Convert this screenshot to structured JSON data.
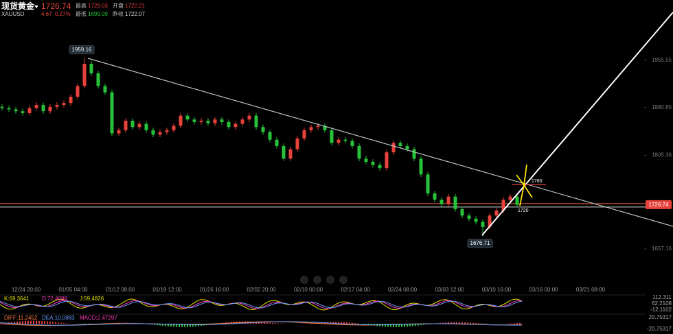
{
  "header": {
    "name": "现货黄金",
    "symbol": "XAUUSD",
    "price": "1726.74",
    "change": "4.67",
    "change_pct": "0.27%",
    "stats": [
      {
        "label": "最高",
        "value": "1729.03"
      },
      {
        "label": "开盘",
        "value": "1722.21"
      },
      {
        "label": "最低",
        "value": "1699.09"
      },
      {
        "label": "昨收",
        "value": "1722.07"
      }
    ]
  },
  "chart_data": {
    "type": "candlestick",
    "open": [
      1882,
      1880,
      1878,
      1875,
      1872,
      1880,
      1885,
      1875,
      1882,
      1885,
      1888,
      1898,
      1915,
      1950,
      1935,
      1915,
      1905,
      1840,
      1845,
      1860,
      1850,
      1855,
      1845,
      1838,
      1842,
      1845,
      1852,
      1868,
      1862,
      1858,
      1860,
      1856,
      1862,
      1858,
      1850,
      1855,
      1862,
      1868,
      1850,
      1842,
      1830,
      1820,
      1800,
      1815,
      1832,
      1845,
      1850,
      1852,
      1845,
      1825,
      1830,
      1828,
      1820,
      1800,
      1795,
      1790,
      1785,
      1810,
      1825,
      1820,
      1815,
      1800,
      1775,
      1745,
      1735,
      1728,
      1740,
      1720,
      1710,
      1705,
      1700,
      1692,
      1710,
      1718,
      1735,
      1740
    ],
    "high": [
      1886,
      1884,
      1882,
      1879,
      1884,
      1889,
      1889,
      1886,
      1889,
      1892,
      1902,
      1919,
      1959.16,
      1954,
      1939,
      1919,
      1909,
      1849,
      1864,
      1864,
      1859,
      1859,
      1849,
      1846,
      1849,
      1856,
      1872,
      1872,
      1866,
      1864,
      1864,
      1866,
      1866,
      1862,
      1859,
      1866,
      1872,
      1872,
      1854,
      1846,
      1834,
      1824,
      1819,
      1836,
      1849,
      1854,
      1856,
      1856,
      1849,
      1834,
      1834,
      1832,
      1824,
      1804,
      1799,
      1794,
      1814,
      1829,
      1829,
      1824,
      1819,
      1804,
      1779,
      1749,
      1739,
      1744,
      1744,
      1724,
      1714,
      1709,
      1704,
      1714,
      1722,
      1739,
      1744,
      1744
    ],
    "low": [
      1876,
      1874,
      1871,
      1868,
      1868,
      1876,
      1871,
      1871,
      1878,
      1881,
      1884,
      1894,
      1911,
      1931,
      1911,
      1901,
      1836,
      1836,
      1841,
      1846,
      1846,
      1841,
      1834,
      1834,
      1838,
      1841,
      1848,
      1858,
      1854,
      1854,
      1852,
      1852,
      1854,
      1846,
      1846,
      1851,
      1858,
      1846,
      1838,
      1826,
      1816,
      1796,
      1796,
      1811,
      1828,
      1841,
      1846,
      1841,
      1821,
      1821,
      1824,
      1816,
      1796,
      1791,
      1786,
      1781,
      1781,
      1806,
      1816,
      1811,
      1796,
      1771,
      1741,
      1731,
      1724,
      1724,
      1716,
      1706,
      1701,
      1696,
      1676.71,
      1688,
      1706,
      1714,
      1731,
      1723
    ],
    "close": [
      1880,
      1878,
      1875,
      1872,
      1880,
      1885,
      1875,
      1882,
      1885,
      1888,
      1898,
      1915,
      1950,
      1935,
      1915,
      1905,
      1840,
      1845,
      1860,
      1850,
      1855,
      1845,
      1838,
      1842,
      1845,
      1852,
      1868,
      1862,
      1858,
      1860,
      1856,
      1862,
      1858,
      1850,
      1855,
      1862,
      1868,
      1850,
      1842,
      1830,
      1820,
      1800,
      1815,
      1832,
      1845,
      1850,
      1852,
      1845,
      1825,
      1830,
      1828,
      1820,
      1800,
      1795,
      1790,
      1785,
      1810,
      1825,
      1820,
      1815,
      1800,
      1775,
      1745,
      1735,
      1728,
      1740,
      1720,
      1710,
      1705,
      1700,
      1692,
      1710,
      1718,
      1735,
      1740,
      1727
    ],
    "up_color": "#e8423c",
    "down_color": "#27c23a",
    "ylim": [
      1617,
      2051
    ],
    "yticks": [
      1955.55,
      1880.85,
      1805.36,
      1657.16
    ],
    "last_price": {
      "value": 1726.74,
      "label": "1726.74"
    },
    "annotations": [
      "1959.16",
      "1676.71",
      "1760",
      "1720"
    ],
    "xlabels": [
      "12/24 20:00",
      "01/05 04:00",
      "01/12 08:00",
      "01/19 12:00",
      "01/26 16:00",
      "02/02 20:00",
      "02/10 00:00",
      "02/17 04:00",
      "02/24 08:00",
      "03/03 12:00",
      "03/10 16:00",
      "03/16 00:00",
      "03/21 08:00"
    ]
  },
  "indicators": {
    "kdj": [
      "K:69.3641",
      "D:72.4088",
      "J:59.4826"
    ],
    "kdj_axis": [
      "112.311",
      "62.2108",
      "-12.1102"
    ],
    "macd": [
      "DIFF:11.2452",
      "DEA:10.0883",
      "MACD:2.47297"
    ],
    "macd_axis": [
      "20.75317",
      "-20.75317"
    ]
  }
}
